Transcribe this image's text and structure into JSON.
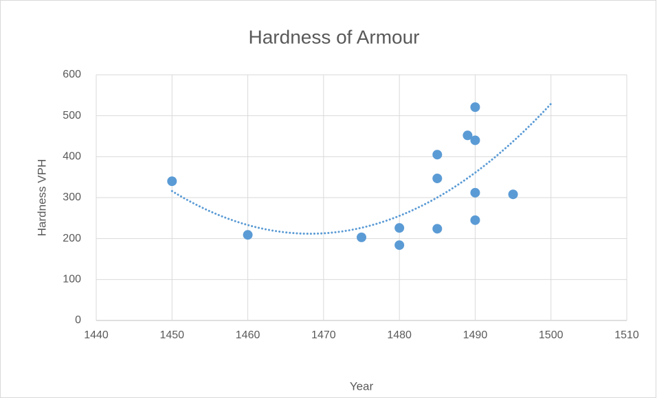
{
  "chart_data": {
    "type": "scatter",
    "title": "Hardness of Armour",
    "x_label": "Year",
    "y_label": "Hardness VPH",
    "series": [
      {
        "name": "Hardness",
        "color": "#5b9bd5",
        "x": [
          1450,
          1460,
          1475,
          1480,
          1480,
          1485,
          1485,
          1485,
          1489,
          1490,
          1490,
          1490,
          1490,
          1495
        ],
        "values": [
          340,
          209,
          203,
          226,
          184,
          405,
          347,
          224,
          452,
          521,
          440,
          312,
          245,
          308
        ]
      }
    ],
    "trendline": {
      "type": "polynomial",
      "order": 2,
      "forward": 5
    },
    "xlim": [
      1440,
      1510
    ],
    "xticks": [
      1440,
      1450,
      1460,
      1470,
      1480,
      1490,
      1500,
      1510
    ],
    "ylim": [
      0,
      600
    ],
    "yticks": [
      0,
      100,
      200,
      300,
      400,
      500,
      600
    ],
    "grid": true
  }
}
